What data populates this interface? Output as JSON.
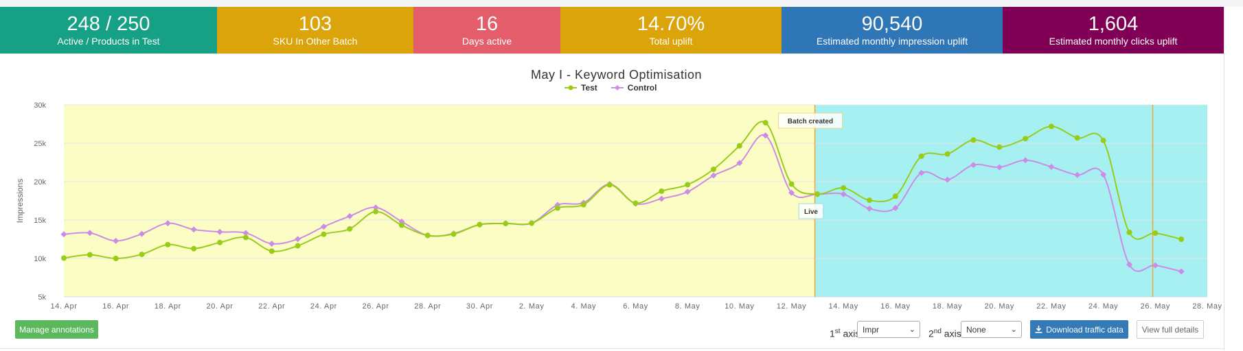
{
  "stats": [
    {
      "value": "248 / 250",
      "label": "Active / Products in Test",
      "color": "#16a085"
    },
    {
      "value": "103",
      "label": "SKU In Other Batch",
      "color": "#dba40a"
    },
    {
      "value": "16",
      "label": "Days active",
      "color": "#e35d6a"
    },
    {
      "value": "14.70%",
      "label": "Total uplift",
      "color": "#dba40a"
    },
    {
      "value": "90,540",
      "label": "Estimated monthly impression uplift",
      "color": "#2e76b6"
    },
    {
      "value": "1,604",
      "label": "Estimated monthly clicks uplift",
      "color": "#7f0055"
    }
  ],
  "chart_data": {
    "type": "line",
    "title": "May I - Keyword Optimisation",
    "ylabel": "Impressions",
    "xlabel": "",
    "ylim": [
      5000,
      30000
    ],
    "y_ticks": [
      {
        "v": 5000,
        "t": "5k"
      },
      {
        "v": 10000,
        "t": "10k"
      },
      {
        "v": 15000,
        "t": "15k"
      },
      {
        "v": 20000,
        "t": "20k"
      },
      {
        "v": 25000,
        "t": "25k"
      },
      {
        "v": 30000,
        "t": "30k"
      }
    ],
    "x_start_day": 14,
    "x_end_day": 58,
    "x_ticks": [
      {
        "d": 14,
        "t": "14. Apr"
      },
      {
        "d": 16,
        "t": "16. Apr"
      },
      {
        "d": 18,
        "t": "18. Apr"
      },
      {
        "d": 20,
        "t": "20. Apr"
      },
      {
        "d": 22,
        "t": "22. Apr"
      },
      {
        "d": 24,
        "t": "24. Apr"
      },
      {
        "d": 26,
        "t": "26. Apr"
      },
      {
        "d": 28,
        "t": "28. Apr"
      },
      {
        "d": 30,
        "t": "30. Apr"
      },
      {
        "d": 32,
        "t": "2. May"
      },
      {
        "d": 34,
        "t": "4. May"
      },
      {
        "d": 36,
        "t": "6. May"
      },
      {
        "d": 38,
        "t": "8. May"
      },
      {
        "d": 40,
        "t": "10. May"
      },
      {
        "d": 42,
        "t": "12. May"
      },
      {
        "d": 44,
        "t": "14. May"
      },
      {
        "d": 46,
        "t": "16. May"
      },
      {
        "d": 48,
        "t": "18. May"
      },
      {
        "d": 50,
        "t": "20. May"
      },
      {
        "d": 52,
        "t": "22. May"
      },
      {
        "d": 54,
        "t": "24. May"
      },
      {
        "d": 56,
        "t": "26. May"
      },
      {
        "d": 58,
        "t": "28. May"
      }
    ],
    "bands": [
      {
        "from": 14,
        "to": 42.9,
        "color": "#fbfdc4",
        "label": "Batch created"
      },
      {
        "from": 42.9,
        "to": 58,
        "color": "#a6f0f2",
        "label": "Live"
      }
    ],
    "plot_lines": [
      {
        "d": 42.9,
        "color": "#f0a830"
      },
      {
        "d": 55.9,
        "color": "#f0a830"
      }
    ],
    "series": [
      {
        "name": "Test",
        "color": "#99cc1a",
        "marker": "circle",
        "values": [
          10050,
          10480,
          10000,
          10530,
          11800,
          11280,
          12080,
          12730,
          10950,
          11650,
          13150,
          13850,
          16100,
          14330,
          13000,
          13180,
          14420,
          14550,
          14600,
          16560,
          17010,
          19590,
          17200,
          18760,
          19600,
          21610,
          24670,
          27680,
          19690,
          18380,
          19180,
          17580,
          18100,
          23320,
          23600,
          25420,
          24500,
          25610,
          27200,
          25700,
          25360,
          13400,
          13300,
          12500
        ]
      },
      {
        "name": "Control",
        "color": "#cc8ce6",
        "marker": "diamond",
        "values": [
          13150,
          13330,
          12290,
          13200,
          14590,
          13770,
          13460,
          13320,
          11920,
          12520,
          14140,
          15510,
          16640,
          14800,
          13000,
          13250,
          14400,
          14560,
          14590,
          16970,
          17260,
          19680,
          17140,
          17780,
          18680,
          20800,
          22430,
          26020,
          18560,
          18370,
          18370,
          16500,
          16570,
          21140,
          20260,
          22180,
          21880,
          22790,
          21930,
          20880,
          20920,
          9200,
          9100,
          8300
        ]
      }
    ]
  },
  "controls": {
    "manage_annotations": "Manage annotations",
    "axis1_prefix": "1",
    "axis1_sup": "st",
    "axis1_suffix": " axis",
    "axis1_value": "Impr",
    "axis2_prefix": "2",
    "axis2_sup": "nd",
    "axis2_suffix": " axis",
    "axis2_value": "None",
    "download": "Download traffic data",
    "view_full": "View full details"
  }
}
